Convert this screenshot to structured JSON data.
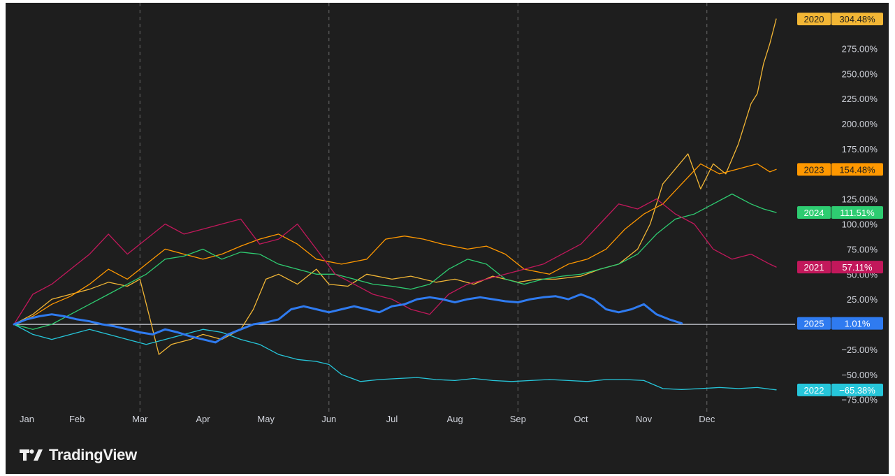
{
  "brand": {
    "name": "TradingView",
    "logo_icon": "tradingview-logo-icon"
  },
  "chart_data": {
    "type": "line",
    "title": "",
    "xlabel": "",
    "ylabel": "",
    "x_ticks": [
      "Jan",
      "Feb",
      "Mar",
      "Apr",
      "May",
      "Jun",
      "Jul",
      "Aug",
      "Sep",
      "Oct",
      "Nov",
      "Dec"
    ],
    "y_ticks": [
      -75,
      -50,
      -25,
      0,
      25,
      50,
      75,
      100,
      125,
      150,
      175,
      200,
      225,
      250,
      275,
      300
    ],
    "y_tick_labels": [
      "−75.00%",
      "−50.00%",
      "−25.00%",
      "",
      "25.00%",
      "50.00%",
      "75.00%",
      "100.00%",
      "125.00%",
      "",
      "175.00%",
      "200.00%",
      "225.00%",
      "250.00%",
      "275.00%",
      ""
    ],
    "ylim": [
      -85,
      315
    ],
    "xlim": [
      0,
      12.4
    ],
    "grid": {
      "vertical_dashed": [
        "Mar",
        "Jun",
        "Sep",
        "Dec"
      ]
    },
    "zero_line": true,
    "series": [
      {
        "name": "2020",
        "label": "304.48%",
        "color": "#f2b635",
        "width": 1.3,
        "x": [
          0,
          0.3,
          0.6,
          0.9,
          1.2,
          1.5,
          1.8,
          2.0,
          2.15,
          2.3,
          2.5,
          2.8,
          3.0,
          3.3,
          3.6,
          3.8,
          4.0,
          4.2,
          4.5,
          4.8,
          5.0,
          5.3,
          5.6,
          6.0,
          6.3,
          6.7,
          7.0,
          7.3,
          7.6,
          8.0,
          8.3,
          8.6,
          9.0,
          9.3,
          9.6,
          9.9,
          10.1,
          10.3,
          10.5,
          10.7,
          10.9,
          11.1,
          11.3,
          11.5,
          11.7,
          11.8,
          11.9,
          12.0,
          12.1
        ],
        "y": [
          0,
          10,
          25,
          30,
          35,
          42,
          38,
          45,
          8,
          -30,
          -20,
          -15,
          -10,
          -15,
          -5,
          15,
          45,
          50,
          40,
          55,
          40,
          38,
          50,
          45,
          48,
          42,
          45,
          40,
          48,
          42,
          45,
          45,
          48,
          55,
          60,
          75,
          100,
          140,
          155,
          170,
          135,
          160,
          150,
          180,
          220,
          230,
          260,
          280,
          304.48
        ]
      },
      {
        "name": "2023",
        "label": "154.48%",
        "color": "#ff9800",
        "width": 1.3,
        "x": [
          0,
          0.3,
          0.6,
          0.9,
          1.2,
          1.5,
          1.8,
          2.1,
          2.4,
          2.7,
          3.0,
          3.3,
          3.6,
          3.9,
          4.2,
          4.5,
          4.8,
          5.2,
          5.6,
          5.9,
          6.2,
          6.5,
          6.8,
          7.2,
          7.5,
          7.8,
          8.1,
          8.5,
          8.8,
          9.1,
          9.4,
          9.7,
          10.0,
          10.3,
          10.6,
          10.9,
          11.2,
          11.5,
          11.8,
          12.0,
          12.1
        ],
        "y": [
          0,
          8,
          20,
          28,
          40,
          55,
          45,
          60,
          75,
          70,
          65,
          70,
          78,
          85,
          90,
          80,
          65,
          60,
          65,
          85,
          88,
          85,
          80,
          75,
          78,
          70,
          55,
          50,
          60,
          65,
          75,
          95,
          110,
          120,
          140,
          160,
          150,
          155,
          160,
          152,
          154.48
        ]
      },
      {
        "name": "2024",
        "label": "111.51%",
        "color": "#2ecc71",
        "width": 1.3,
        "x": [
          0,
          0.3,
          0.6,
          0.9,
          1.2,
          1.5,
          1.8,
          2.1,
          2.4,
          2.7,
          3.0,
          3.3,
          3.6,
          3.9,
          4.2,
          4.5,
          4.8,
          5.1,
          5.4,
          5.7,
          6.0,
          6.3,
          6.6,
          6.9,
          7.2,
          7.5,
          7.8,
          8.1,
          8.4,
          8.7,
          9.0,
          9.3,
          9.6,
          9.9,
          10.2,
          10.5,
          10.8,
          11.1,
          11.4,
          11.7,
          11.9,
          12.1
        ],
        "y": [
          0,
          -5,
          0,
          10,
          20,
          30,
          40,
          50,
          65,
          68,
          75,
          65,
          72,
          70,
          60,
          55,
          50,
          50,
          45,
          40,
          38,
          35,
          40,
          55,
          65,
          60,
          45,
          40,
          45,
          48,
          50,
          55,
          60,
          70,
          90,
          105,
          110,
          120,
          130,
          120,
          115,
          111.51
        ]
      },
      {
        "name": "2021",
        "label": "57.11%",
        "color": "#c2185b",
        "width": 1.3,
        "x": [
          0,
          0.3,
          0.6,
          0.9,
          1.2,
          1.5,
          1.8,
          2.1,
          2.4,
          2.7,
          3.0,
          3.3,
          3.6,
          3.9,
          4.2,
          4.5,
          4.8,
          5.1,
          5.4,
          5.7,
          6.0,
          6.3,
          6.6,
          6.9,
          7.2,
          7.5,
          7.8,
          8.1,
          8.4,
          8.7,
          9.0,
          9.3,
          9.6,
          9.9,
          10.2,
          10.5,
          10.8,
          11.1,
          11.4,
          11.7,
          12.0,
          12.1
        ],
        "y": [
          0,
          30,
          40,
          55,
          70,
          90,
          70,
          85,
          100,
          90,
          95,
          100,
          105,
          80,
          85,
          100,
          75,
          50,
          40,
          30,
          25,
          15,
          10,
          30,
          40,
          45,
          50,
          55,
          60,
          70,
          80,
          100,
          120,
          115,
          125,
          110,
          100,
          75,
          65,
          70,
          60,
          57.11
        ]
      },
      {
        "name": "2022",
        "label": "−65.38%",
        "color": "#26c6da",
        "width": 1.3,
        "x": [
          0,
          0.3,
          0.6,
          0.9,
          1.2,
          1.5,
          1.8,
          2.1,
          2.4,
          2.7,
          3.0,
          3.3,
          3.6,
          3.9,
          4.2,
          4.5,
          4.8,
          5.0,
          5.2,
          5.5,
          5.8,
          6.1,
          6.4,
          6.7,
          7.0,
          7.3,
          7.6,
          7.9,
          8.2,
          8.5,
          8.8,
          9.1,
          9.4,
          9.7,
          10.0,
          10.3,
          10.6,
          10.9,
          11.2,
          11.5,
          11.8,
          12.1
        ],
        "y": [
          0,
          -10,
          -15,
          -10,
          -5,
          -10,
          -15,
          -20,
          -15,
          -10,
          -5,
          -8,
          -15,
          -20,
          -30,
          -35,
          -37,
          -40,
          -50,
          -57,
          -55,
          -54,
          -53,
          -55,
          -56,
          -54,
          -56,
          -57,
          -56,
          -55,
          -56,
          -57,
          -55,
          -55,
          -56,
          -64,
          -65,
          -64,
          -63,
          -64,
          -63,
          -65.38
        ]
      },
      {
        "name": "2025",
        "label": "1.01%",
        "color": "#2f7bf0",
        "width": 3,
        "x": [
          0,
          0.2,
          0.4,
          0.6,
          0.8,
          1.0,
          1.2,
          1.4,
          1.6,
          1.8,
          2.0,
          2.2,
          2.4,
          2.6,
          2.8,
          3.0,
          3.2,
          3.4,
          3.6,
          3.8,
          4.0,
          4.2,
          4.4,
          4.6,
          4.8,
          5.0,
          5.2,
          5.4,
          5.6,
          5.8,
          6.0,
          6.2,
          6.4,
          6.6,
          6.8,
          7.0,
          7.2,
          7.4,
          7.6,
          7.8,
          8.0,
          8.2,
          8.4,
          8.6,
          8.8,
          9.0,
          9.2,
          9.4,
          9.6,
          9.8,
          10.0,
          10.2,
          10.4,
          10.6
        ],
        "y": [
          0,
          5,
          8,
          10,
          8,
          5,
          3,
          0,
          -2,
          -5,
          -8,
          -10,
          -5,
          -8,
          -12,
          -15,
          -18,
          -10,
          -5,
          0,
          2,
          5,
          15,
          18,
          15,
          12,
          15,
          18,
          15,
          12,
          18,
          20,
          25,
          27,
          25,
          22,
          25,
          27,
          25,
          23,
          22,
          25,
          27,
          28,
          25,
          30,
          25,
          15,
          12,
          15,
          20,
          10,
          5,
          1.01
        ]
      }
    ]
  }
}
